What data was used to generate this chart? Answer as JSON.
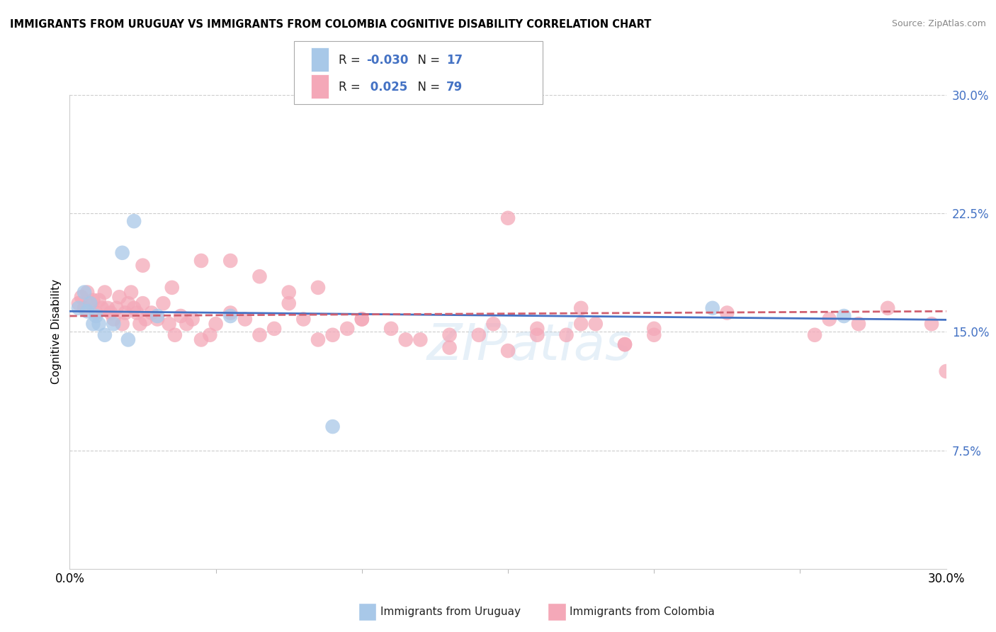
{
  "title": "IMMIGRANTS FROM URUGUAY VS IMMIGRANTS FROM COLOMBIA COGNITIVE DISABILITY CORRELATION CHART",
  "source": "Source: ZipAtlas.com",
  "ylabel": "Cognitive Disability",
  "xmin": 0.0,
  "xmax": 0.3,
  "ymin": 0.0,
  "ymax": 0.3,
  "ytick_positions": [
    0.075,
    0.15,
    0.225,
    0.3
  ],
  "ytick_labels": [
    "7.5%",
    "15.0%",
    "22.5%",
    "30.0%"
  ],
  "legend_R_uruguay": "-0.030",
  "legend_N_uruguay": "17",
  "legend_R_colombia": "0.025",
  "legend_N_colombia": "79",
  "color_uruguay": "#a8c8e8",
  "color_colombia": "#f4a8b8",
  "trendline_color_uruguay": "#4472c4",
  "trendline_color_colombia": "#d06070",
  "watermark": "ZIPAtlas",
  "uruguay_x": [
    0.003,
    0.005,
    0.006,
    0.007,
    0.008,
    0.009,
    0.01,
    0.012,
    0.015,
    0.018,
    0.02,
    0.022,
    0.03,
    0.055,
    0.09,
    0.22,
    0.265
  ],
  "uruguay_y": [
    0.165,
    0.175,
    0.163,
    0.168,
    0.155,
    0.16,
    0.155,
    0.148,
    0.155,
    0.2,
    0.145,
    0.22,
    0.16,
    0.16,
    0.09,
    0.165,
    0.16
  ],
  "colombia_x": [
    0.003,
    0.004,
    0.005,
    0.006,
    0.007,
    0.008,
    0.009,
    0.01,
    0.011,
    0.012,
    0.013,
    0.014,
    0.015,
    0.016,
    0.017,
    0.018,
    0.019,
    0.02,
    0.021,
    0.022,
    0.023,
    0.024,
    0.025,
    0.026,
    0.028,
    0.03,
    0.032,
    0.034,
    0.036,
    0.038,
    0.04,
    0.042,
    0.045,
    0.048,
    0.05,
    0.055,
    0.06,
    0.065,
    0.07,
    0.075,
    0.08,
    0.085,
    0.09,
    0.095,
    0.1,
    0.11,
    0.12,
    0.13,
    0.14,
    0.15,
    0.16,
    0.17,
    0.18,
    0.19,
    0.2,
    0.055,
    0.065,
    0.075,
    0.085,
    0.1,
    0.115,
    0.13,
    0.145,
    0.16,
    0.175,
    0.19,
    0.025,
    0.035,
    0.045,
    0.26,
    0.28,
    0.295,
    0.15,
    0.175,
    0.2,
    0.225,
    0.255,
    0.27,
    0.3
  ],
  "colombia_y": [
    0.168,
    0.172,
    0.165,
    0.175,
    0.168,
    0.17,
    0.162,
    0.17,
    0.165,
    0.175,
    0.165,
    0.162,
    0.158,
    0.165,
    0.172,
    0.155,
    0.162,
    0.168,
    0.175,
    0.165,
    0.162,
    0.155,
    0.168,
    0.158,
    0.162,
    0.158,
    0.168,
    0.155,
    0.148,
    0.16,
    0.155,
    0.158,
    0.145,
    0.148,
    0.155,
    0.162,
    0.158,
    0.148,
    0.152,
    0.168,
    0.158,
    0.145,
    0.148,
    0.152,
    0.158,
    0.152,
    0.145,
    0.14,
    0.148,
    0.138,
    0.152,
    0.148,
    0.155,
    0.142,
    0.152,
    0.195,
    0.185,
    0.175,
    0.178,
    0.158,
    0.145,
    0.148,
    0.155,
    0.148,
    0.165,
    0.142,
    0.192,
    0.178,
    0.195,
    0.158,
    0.165,
    0.155,
    0.222,
    0.155,
    0.148,
    0.162,
    0.148,
    0.155,
    0.125
  ]
}
